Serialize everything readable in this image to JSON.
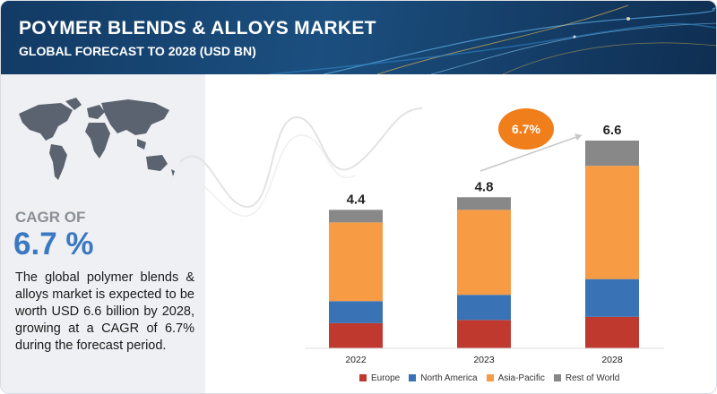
{
  "header": {
    "title": "POYMER BLENDS & ALLOYS MARKET",
    "subtitle": "GLOBAL FORECAST TO 2028 (USD BN)"
  },
  "left_panel": {
    "cagr_label": "CAGR OF",
    "cagr_value": "6.7 %",
    "description": "The global  polymer blends & alloys market is expected to be worth USD   6.6 billion by 2028, growing at a CAGR of 6.7% during the forecast period.",
    "map_icon": "world-map-icon"
  },
  "bubble": {
    "label": "6.7%"
  },
  "colors": {
    "header_bg": "#1b4f7f",
    "europe": "#c0392f",
    "north_america": "#3a73b5",
    "asia_pacific": "#f79b45",
    "rest_of_world": "#888888",
    "accent_orange": "#f07e1a",
    "cagr_blue": "#3a78c2"
  },
  "chart_data": {
    "type": "bar",
    "stacked": true,
    "categories": [
      "2022",
      "2023",
      "2028"
    ],
    "totals": [
      "4.4",
      "4.8",
      "6.6"
    ],
    "series": [
      {
        "name": "Europe",
        "color": "#c0392f",
        "values": [
          0.8,
          0.9,
          1.0
        ]
      },
      {
        "name": "North America",
        "color": "#3a73b5",
        "values": [
          0.7,
          0.8,
          1.2
        ]
      },
      {
        "name": "Asia-Pacific",
        "color": "#f79b45",
        "values": [
          2.5,
          2.7,
          3.6
        ]
      },
      {
        "name": "Rest of World",
        "color": "#888888",
        "values": [
          0.4,
          0.4,
          0.8
        ]
      }
    ],
    "cagr_annotation": "6.7%",
    "ylim": [
      0,
      6.6
    ],
    "legend_position": "bottom",
    "grid": false
  }
}
